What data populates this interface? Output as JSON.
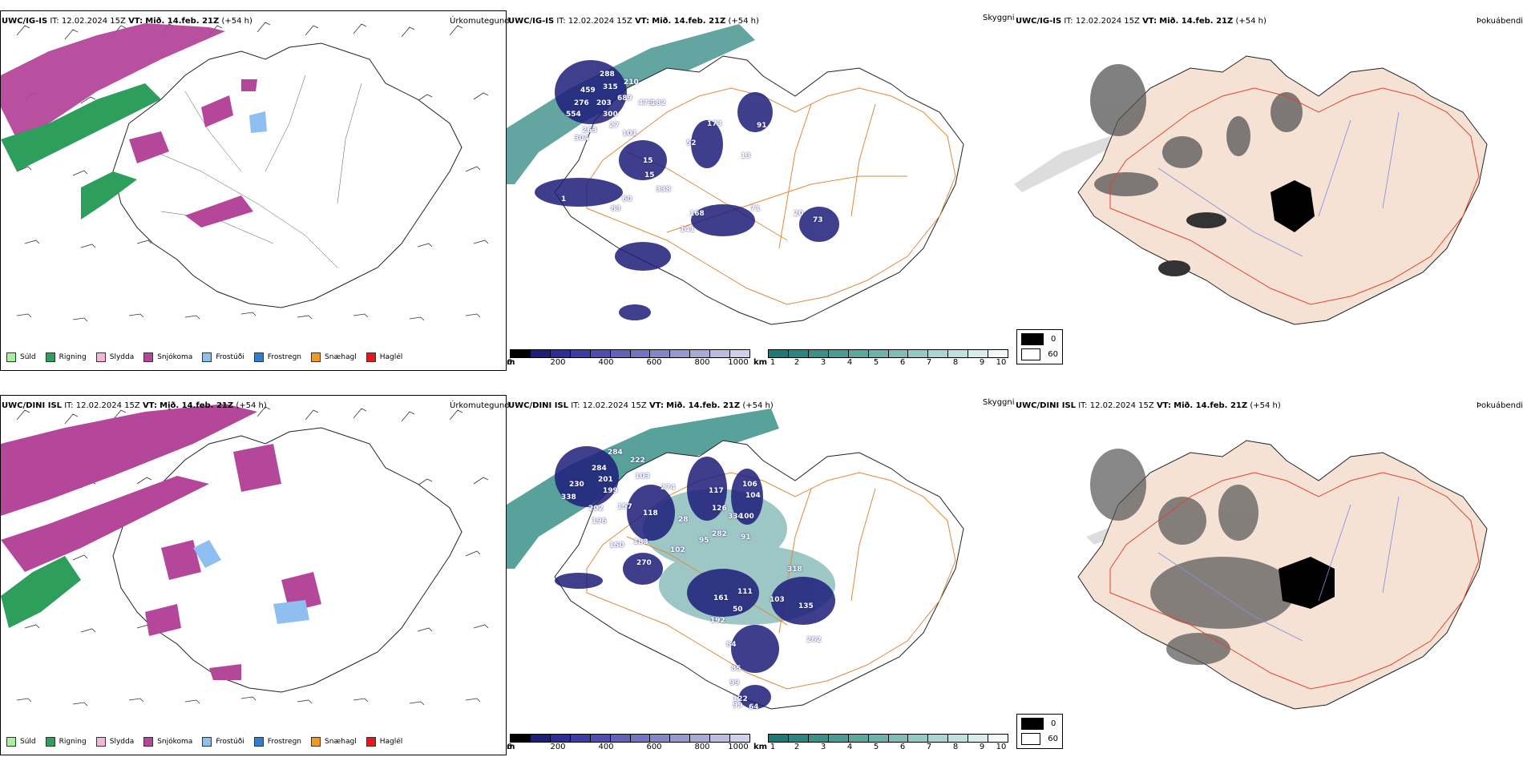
{
  "rows": [
    {
      "model": "UWC/IG-IS",
      "it_label": "IT:",
      "it_value": "12.02.2024 15Z",
      "vt_label": "VT:",
      "vt_value": "Mið. 14.feb. 21Z",
      "lead": "(+54 h)",
      "precip_title": "Úrkomutegund",
      "vis_title": "Skyggni",
      "fog_title": "Þokuábendi",
      "height_labels": [
        "288",
        "210",
        "459",
        "315",
        "276",
        "689",
        "554",
        "203",
        "300",
        "304",
        "473",
        "263",
        "27",
        "101",
        "182",
        "15",
        "15",
        "91",
        "173",
        "52",
        "13",
        "338",
        "60",
        "83",
        "1",
        "71",
        "168",
        "141",
        "20",
        "73"
      ],
      "cloud_fill_labels": []
    },
    {
      "model": "UWC/DINI ISL",
      "it_label": "IT:",
      "it_value": "12.02.2024 15Z",
      "vt_label": "VT:",
      "vt_value": "Mið. 14.feb. 21Z",
      "lead": "(+54 h)",
      "precip_title": "Úrkomutegund",
      "vis_title": "Skyggni",
      "fog_title": "Þokuábendi",
      "height_labels": [
        "284",
        "222",
        "284",
        "103",
        "230",
        "201",
        "274",
        "338",
        "199",
        "202",
        "157",
        "118",
        "196",
        "117",
        "106",
        "104",
        "126",
        "334",
        "100",
        "28",
        "282",
        "91",
        "95",
        "150",
        "183",
        "102",
        "270",
        "318",
        "111",
        "161",
        "50",
        "103",
        "135",
        "192",
        "84",
        "262",
        "99",
        "85",
        "122",
        "99",
        "64"
      ],
      "cloud_fill_labels": []
    }
  ],
  "precip_legend": [
    {
      "label": "Súld",
      "color": "#a7f0a3"
    },
    {
      "label": "Rigning",
      "color": "#2e9e5c"
    },
    {
      "label": "Slydda",
      "color": "#f4b6d8"
    },
    {
      "label": "Snjókoma",
      "color": "#b5479a"
    },
    {
      "label": "Frostúði",
      "color": "#8fbff0"
    },
    {
      "label": "Frostregn",
      "color": "#2f7fd1"
    },
    {
      "label": "Snæhagl",
      "color": "#f39a1e"
    },
    {
      "label": "Haglél",
      "color": "#e31a1c"
    }
  ],
  "cloudbase_colorbar": {
    "unit": "m",
    "ticks": [
      "0",
      "200",
      "400",
      "600",
      "800",
      "1000"
    ],
    "colors": [
      "#000000",
      "#1d1d7a",
      "#2d2d96",
      "#3d3da8",
      "#4e4eb2",
      "#6262b8",
      "#7474c0",
      "#8585c8",
      "#9898d0",
      "#aaaad8",
      "#bcbce2",
      "#d0d0ec"
    ]
  },
  "visibility_colorbar": {
    "unit": "km",
    "ticks": [
      "1",
      "2",
      "3",
      "4",
      "5",
      "6",
      "7",
      "8",
      "9",
      "10"
    ],
    "colors": [
      "#1f7a74",
      "#2d857f",
      "#3c908a",
      "#4c9b95",
      "#5da7a1",
      "#6fb2ad",
      "#82beb9",
      "#96c9c5",
      "#abd5d2",
      "#c2e1de",
      "#daedeb",
      "#f2f8f8"
    ]
  },
  "fog_legend": [
    {
      "label": "0",
      "color": "#000000"
    },
    {
      "label": "60",
      "color": "#ffffff"
    }
  ]
}
